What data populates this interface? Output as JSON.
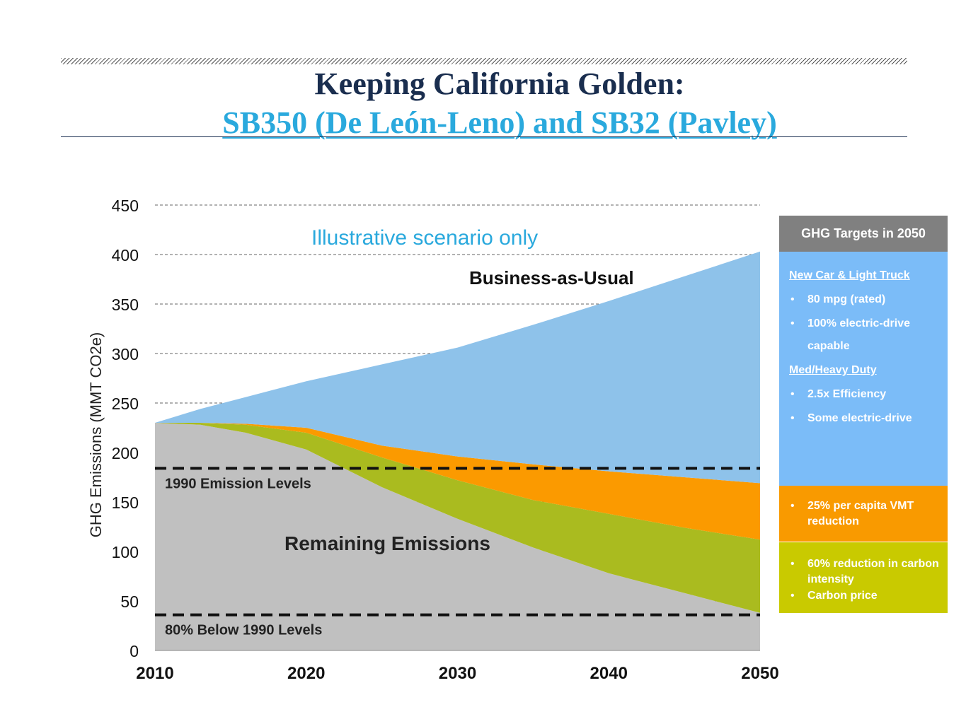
{
  "header": {
    "title_line1": "Keeping California Golden:",
    "title_line2": "SB350 (De León-Leno) and SB32 (Pavley)"
  },
  "chart_data": {
    "type": "area",
    "ylabel": "GHG Emissions (MMT CO2e)",
    "xlim": [
      2010,
      2050
    ],
    "ylim": [
      0,
      450
    ],
    "xticks": [
      2010,
      2020,
      2030,
      2040,
      2050
    ],
    "yticks": [
      0,
      50,
      100,
      150,
      200,
      250,
      300,
      350,
      400,
      450
    ],
    "grid": "horizontal dashed",
    "x": [
      2010,
      2013,
      2016,
      2020,
      2025,
      2030,
      2035,
      2040,
      2045,
      2050
    ],
    "series": [
      {
        "name": "Remaining Emissions",
        "color": "#c0c0c0",
        "values": [
          230,
          228,
          220,
          203,
          165,
          133,
          104,
          78,
          58,
          38
        ]
      },
      {
        "name": "60% reduction in carbon intensity / Carbon price",
        "color": "#aabb1f",
        "top": [
          230,
          230,
          228,
          220,
          195,
          172,
          152,
          138,
          124,
          112
        ]
      },
      {
        "name": "25% per capita VMT reduction",
        "color": "#fb9a00",
        "top": [
          230,
          230,
          229,
          225,
          207,
          196,
          188,
          181,
          175,
          169
        ]
      },
      {
        "name": "Business-as-Usual",
        "color": "#8ec2ea",
        "top": [
          230,
          244,
          256,
          272,
          289,
          306,
          329,
          353,
          378,
          403
        ]
      }
    ],
    "reference_lines": [
      {
        "label": "1990 Emission Levels",
        "value": 184
      },
      {
        "label": "80% Below 1990 Levels",
        "value": 36
      }
    ],
    "annotations": {
      "scenario_note": "Illustrative scenario only",
      "bau_label": "Business-as-Usual",
      "remaining_label": "Remaining Emissions"
    }
  },
  "panel": {
    "header": "GHG Targets in 2050",
    "blue": {
      "section1": "New Car & Light Truck",
      "b1": "80 mpg (rated)",
      "b2_line1": "100% electric-drive",
      "b2_line2": "capable",
      "section2": "Med/Heavy Duty",
      "b3": "2.5x Efficiency",
      "b4": "Some electric-drive"
    },
    "orange": {
      "b1": "25% per capita VMT reduction"
    },
    "green": {
      "b1": "60% reduction in carbon intensity",
      "b2": "Carbon price"
    }
  }
}
